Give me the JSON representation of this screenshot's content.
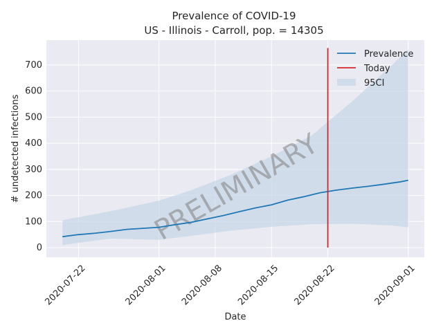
{
  "chart_data": {
    "type": "line",
    "title_line1": "Prevalence of COVID-19",
    "title_line2": "US - Illinois - Carroll, pop. = 14305",
    "xlabel": "Date",
    "ylabel": "# undetected infections",
    "watermark": "PRELIMINARY",
    "x_ticks": [
      "2020-07-22",
      "2020-08-01",
      "2020-08-08",
      "2020-08-15",
      "2020-08-22",
      "2020-09-01"
    ],
    "y_ticks": [
      0,
      100,
      200,
      300,
      400,
      500,
      600,
      700
    ],
    "x_range": [
      "2020-07-18",
      "2020-09-03"
    ],
    "ylim": [
      -37,
      795
    ],
    "grid": true,
    "legend_position": "top-right",
    "legend": [
      "Prevalence",
      "Today",
      "95CI"
    ],
    "colors": {
      "prevalence": "#1f77b4",
      "today": "#d62728",
      "ci_fill": "#c8d7e8",
      "background": "#eaeaf2",
      "grid": "#ffffff"
    },
    "today": {
      "date": "2020-08-22",
      "ymin": 0,
      "ymax": 765
    },
    "prevalence": {
      "name": "Prevalence",
      "x": [
        "2020-07-20",
        "2020-07-22",
        "2020-07-24",
        "2020-07-26",
        "2020-07-28",
        "2020-07-30",
        "2020-08-01",
        "2020-08-03",
        "2020-08-05",
        "2020-08-07",
        "2020-08-09",
        "2020-08-11",
        "2020-08-13",
        "2020-08-15",
        "2020-08-17",
        "2020-08-19",
        "2020-08-21",
        "2020-08-23",
        "2020-08-25",
        "2020-08-27",
        "2020-08-29",
        "2020-08-31",
        "2020-09-01"
      ],
      "values": [
        42,
        50,
        55,
        62,
        70,
        74,
        78,
        88,
        97,
        110,
        123,
        138,
        152,
        164,
        182,
        195,
        210,
        220,
        228,
        235,
        243,
        252,
        258
      ]
    },
    "ci": {
      "name": "95CI",
      "x": [
        "2020-07-20",
        "2020-07-26",
        "2020-08-01",
        "2020-08-05",
        "2020-08-10",
        "2020-08-15",
        "2020-08-20",
        "2020-08-25",
        "2020-08-30",
        "2020-09-01"
      ],
      "lower": [
        10,
        35,
        30,
        45,
        65,
        80,
        90,
        92,
        85,
        78
      ],
      "upper": [
        105,
        140,
        180,
        220,
        280,
        350,
        430,
        560,
        700,
        760
      ]
    }
  }
}
